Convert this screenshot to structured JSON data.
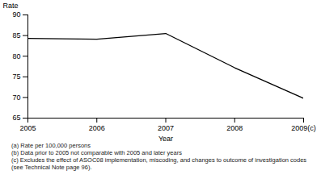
{
  "chart_data": {
    "type": "line",
    "x": [
      2005,
      2006,
      2007,
      2008,
      2009
    ],
    "values": [
      84.3,
      84.1,
      85.5,
      77.2,
      69.8
    ],
    "color": "#000000",
    "x_label": "Year",
    "y_label": "Rate",
    "xlim": [
      2005,
      2009
    ],
    "xticks": [
      2005,
      2006,
      2007,
      2008,
      {
        "value": 2009,
        "label": "2009(c)"
      }
    ],
    "ylim": [
      65,
      90
    ],
    "yticks": [
      65,
      70,
      75,
      80,
      85,
      90
    ],
    "grid": false,
    "annotations": [
      "(a) Rate per 100,000 persons",
      "(b) Data prior to 2005 not comparable with 2005 and later years",
      "(c) Excludes the effect of ASOC08 implementation, miscoding, and changes to outcome of investigation codes (see Technical Note page 96)."
    ]
  }
}
